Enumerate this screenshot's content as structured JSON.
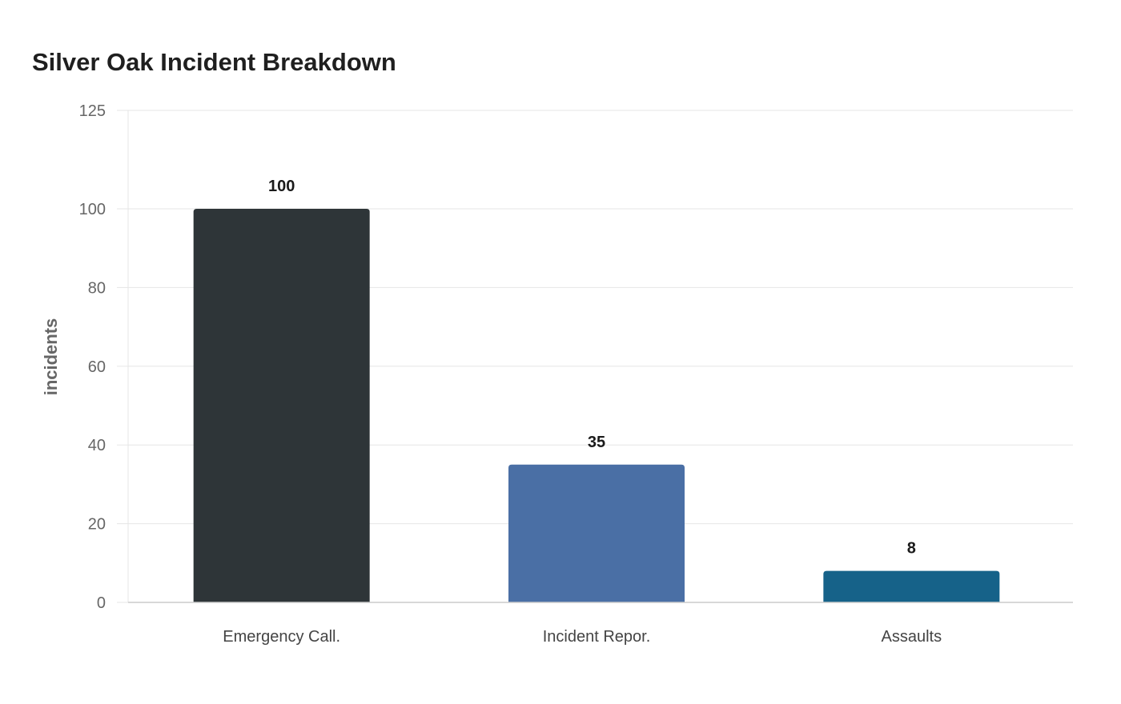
{
  "chart_data": {
    "type": "bar",
    "title": "Silver Oak Incident Breakdown",
    "xlabel": "",
    "ylabel": "incidents",
    "categories": [
      "Emergency Call.",
      "Incident Repor.",
      "Assaults"
    ],
    "values": [
      100,
      35,
      8
    ],
    "colors": [
      "#2e3538",
      "#4a6fa5",
      "#166289"
    ],
    "ylim": [
      0,
      125
    ],
    "yticks": [
      0,
      20,
      40,
      60,
      80,
      100,
      125
    ],
    "grid": true,
    "legend": "none",
    "data_labels": true
  }
}
